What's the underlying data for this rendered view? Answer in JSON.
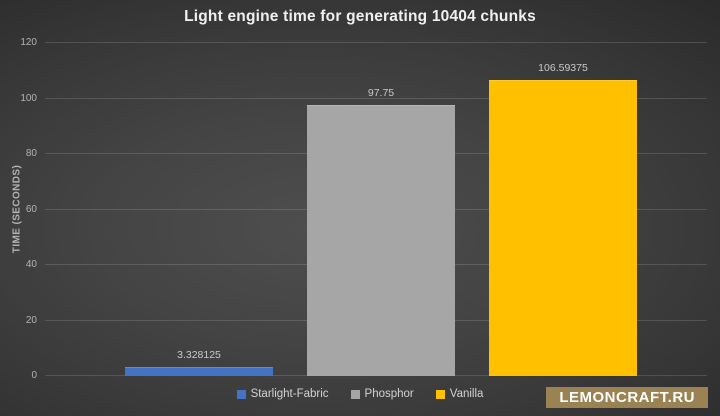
{
  "title": "Light engine time for generating 10404 chunks",
  "chart_data": {
    "type": "bar",
    "title": "Light engine time for generating 10404 chunks",
    "categories": [
      "Starlight-Fabric",
      "Phosphor",
      "Vanilla"
    ],
    "values": [
      3.328125,
      97.75,
      106.59375
    ],
    "value_labels": [
      "3.328125",
      "97.75",
      "106.59375"
    ],
    "bar_colors": [
      "#4472c4",
      "#a6a6a6",
      "#ffc000"
    ],
    "xlabel": "",
    "ylabel": "TIME (SECONDS)",
    "ylim": [
      0,
      120
    ],
    "yticks": [
      0,
      20,
      40,
      60,
      80,
      100,
      120
    ],
    "grid": true,
    "legend_position": "bottom",
    "legend": [
      {
        "label": "Starlight-Fabric",
        "color": "#4472c4"
      },
      {
        "label": "Phosphor",
        "color": "#a6a6a6"
      },
      {
        "label": "Vanilla",
        "color": "#ffc000"
      }
    ]
  },
  "colors": {
    "background_center": "#4e4e4e",
    "background_edge": "#252525",
    "gridline": "rgba(255,255,255,0.14)",
    "title_text": "#f0f0f0",
    "tick_text": "#b3b3b3",
    "value_label_text": "#c9c9c9",
    "legend_text": "#d2d2d2"
  },
  "watermark": {
    "text": "LEMONCRAFT.RU",
    "bg_color": "#9a8252",
    "text_color": "#ffffff"
  }
}
